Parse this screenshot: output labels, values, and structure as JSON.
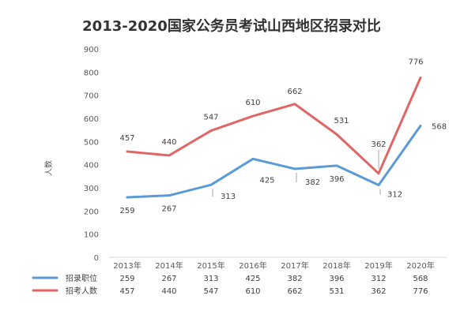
{
  "chart_data": {
    "type": "line",
    "title": "2013-2020国家公务员考试山西地区招录对比",
    "ylabel": "人数",
    "xlabel": "",
    "ylim": [
      0,
      900
    ],
    "yticks": [
      "0",
      "100",
      "200",
      "300",
      "400",
      "500",
      "600",
      "700",
      "800",
      "900"
    ],
    "categories": [
      "2013年",
      "2014年",
      "2015年",
      "2016年",
      "2017年",
      "2018年",
      "2019年",
      "2020年"
    ],
    "legend_position": "bottom data table",
    "grid": false,
    "series": [
      {
        "name": "招录职位",
        "color": "#5b9bd5",
        "values": [
          259,
          267,
          313,
          425,
          382,
          396,
          312,
          568
        ]
      },
      {
        "name": "招考人数",
        "color": "#e06666",
        "values": [
          457,
          440,
          547,
          610,
          662,
          531,
          362,
          776
        ]
      }
    ]
  }
}
